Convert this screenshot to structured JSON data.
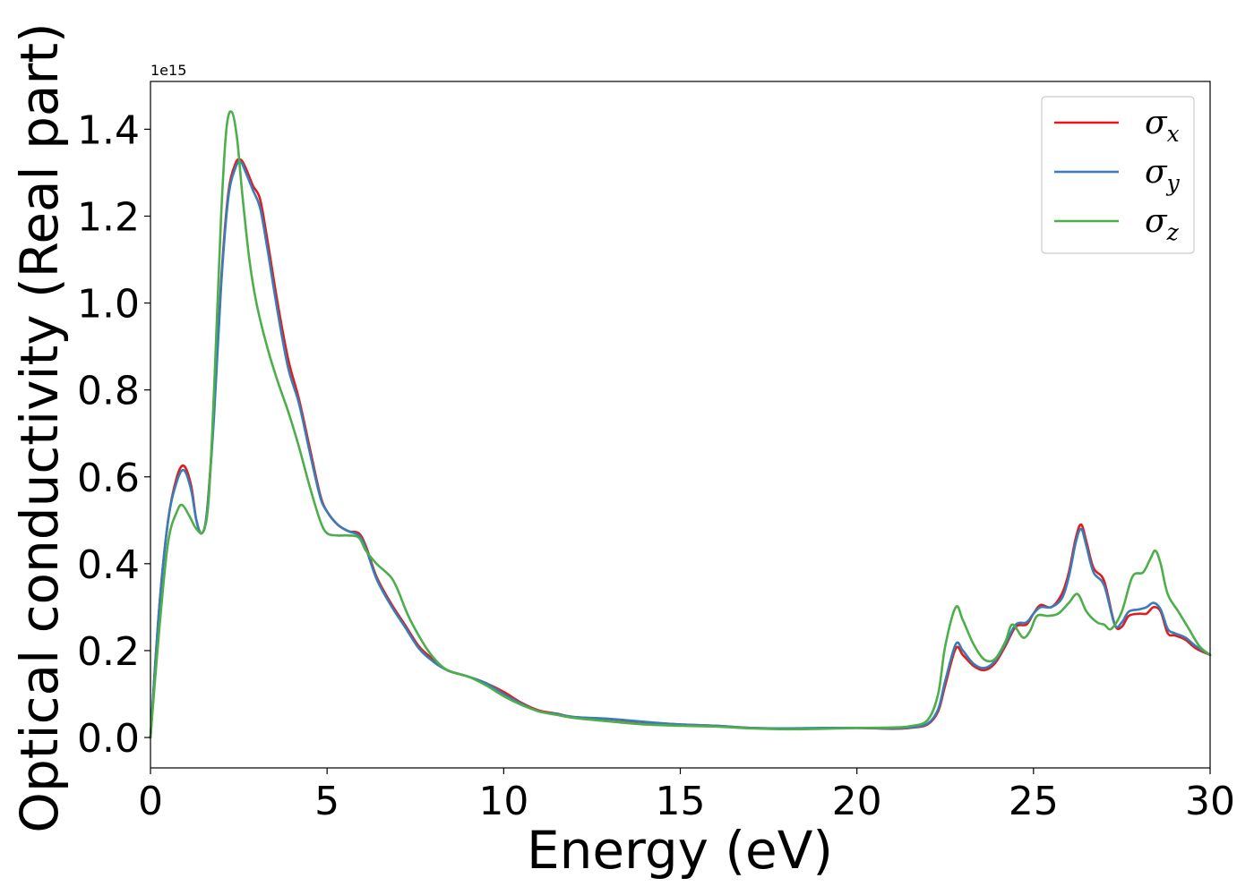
{
  "chart_data": {
    "type": "line",
    "xlabel": "Energy (eV)",
    "ylabel": "Optical conductivity (Real part)",
    "y_offset_label": "1e15",
    "xlim": [
      0,
      30
    ],
    "ylim": [
      -0.07,
      1.51
    ],
    "xticks": [
      0,
      5,
      10,
      15,
      20,
      25,
      30
    ],
    "xtick_labels": [
      "0",
      "5",
      "10",
      "15",
      "20",
      "25",
      "30"
    ],
    "yticks": [
      0.0,
      0.2,
      0.4,
      0.6,
      0.8,
      1.0,
      1.2,
      1.4
    ],
    "ytick_labels": [
      "0.0",
      "0.2",
      "0.4",
      "0.6",
      "0.8",
      "1.0",
      "1.2",
      "1.4"
    ],
    "grid": false,
    "legend_position": "top-right",
    "series": [
      {
        "name": "σ",
        "subscript": "x",
        "color": "#e41a1c",
        "points": [
          [
            0,
            0
          ],
          [
            0.25,
            0.3
          ],
          [
            0.5,
            0.5
          ],
          [
            0.75,
            0.6
          ],
          [
            0.95,
            0.625
          ],
          [
            1.15,
            0.58
          ],
          [
            1.3,
            0.5
          ],
          [
            1.45,
            0.47
          ],
          [
            1.6,
            0.52
          ],
          [
            1.8,
            0.75
          ],
          [
            2.0,
            1.05
          ],
          [
            2.2,
            1.25
          ],
          [
            2.4,
            1.32
          ],
          [
            2.55,
            1.33
          ],
          [
            2.7,
            1.31
          ],
          [
            2.9,
            1.27
          ],
          [
            3.1,
            1.24
          ],
          [
            3.3,
            1.15
          ],
          [
            3.6,
            1.0
          ],
          [
            3.9,
            0.87
          ],
          [
            4.2,
            0.78
          ],
          [
            4.5,
            0.67
          ],
          [
            4.8,
            0.56
          ],
          [
            5.0,
            0.52
          ],
          [
            5.3,
            0.49
          ],
          [
            5.6,
            0.475
          ],
          [
            5.9,
            0.47
          ],
          [
            6.1,
            0.44
          ],
          [
            6.4,
            0.37
          ],
          [
            6.8,
            0.31
          ],
          [
            7.2,
            0.26
          ],
          [
            7.6,
            0.21
          ],
          [
            8.0,
            0.18
          ],
          [
            8.4,
            0.155
          ],
          [
            9.0,
            0.14
          ],
          [
            9.5,
            0.125
          ],
          [
            10.0,
            0.105
          ],
          [
            10.5,
            0.08
          ],
          [
            11.0,
            0.062
          ],
          [
            11.5,
            0.055
          ],
          [
            12.0,
            0.047
          ],
          [
            13.0,
            0.042
          ],
          [
            14.0,
            0.035
          ],
          [
            15.0,
            0.03
          ],
          [
            16.0,
            0.027
          ],
          [
            17.0,
            0.022
          ],
          [
            18.0,
            0.02
          ],
          [
            19.0,
            0.021
          ],
          [
            20.0,
            0.022
          ],
          [
            21.0,
            0.02
          ],
          [
            21.5,
            0.022
          ],
          [
            22.0,
            0.03
          ],
          [
            22.3,
            0.06
          ],
          [
            22.5,
            0.12
          ],
          [
            22.8,
            0.205
          ],
          [
            23.0,
            0.19
          ],
          [
            23.3,
            0.165
          ],
          [
            23.6,
            0.155
          ],
          [
            23.9,
            0.17
          ],
          [
            24.2,
            0.21
          ],
          [
            24.5,
            0.255
          ],
          [
            24.8,
            0.26
          ],
          [
            25.0,
            0.285
          ],
          [
            25.2,
            0.305
          ],
          [
            25.5,
            0.3
          ],
          [
            25.8,
            0.33
          ],
          [
            26.0,
            0.38
          ],
          [
            26.2,
            0.46
          ],
          [
            26.35,
            0.49
          ],
          [
            26.5,
            0.45
          ],
          [
            26.7,
            0.39
          ],
          [
            27.0,
            0.36
          ],
          [
            27.3,
            0.26
          ],
          [
            27.5,
            0.255
          ],
          [
            27.7,
            0.28
          ],
          [
            28.0,
            0.285
          ],
          [
            28.2,
            0.285
          ],
          [
            28.4,
            0.3
          ],
          [
            28.6,
            0.29
          ],
          [
            28.8,
            0.24
          ],
          [
            29.0,
            0.235
          ],
          [
            29.3,
            0.225
          ],
          [
            29.6,
            0.205
          ],
          [
            30.0,
            0.19
          ]
        ]
      },
      {
        "name": "σ",
        "subscript": "y",
        "color": "#377eb8",
        "points": [
          [
            0,
            0
          ],
          [
            0.25,
            0.3
          ],
          [
            0.5,
            0.5
          ],
          [
            0.75,
            0.59
          ],
          [
            0.95,
            0.615
          ],
          [
            1.15,
            0.57
          ],
          [
            1.3,
            0.5
          ],
          [
            1.45,
            0.47
          ],
          [
            1.6,
            0.52
          ],
          [
            1.8,
            0.74
          ],
          [
            2.0,
            1.04
          ],
          [
            2.2,
            1.24
          ],
          [
            2.4,
            1.31
          ],
          [
            2.55,
            1.325
          ],
          [
            2.7,
            1.3
          ],
          [
            2.9,
            1.26
          ],
          [
            3.1,
            1.22
          ],
          [
            3.3,
            1.13
          ],
          [
            3.6,
            0.98
          ],
          [
            3.9,
            0.85
          ],
          [
            4.2,
            0.77
          ],
          [
            4.5,
            0.66
          ],
          [
            4.8,
            0.555
          ],
          [
            5.0,
            0.52
          ],
          [
            5.3,
            0.49
          ],
          [
            5.6,
            0.475
          ],
          [
            5.9,
            0.465
          ],
          [
            6.1,
            0.435
          ],
          [
            6.4,
            0.365
          ],
          [
            6.8,
            0.305
          ],
          [
            7.2,
            0.255
          ],
          [
            7.6,
            0.205
          ],
          [
            8.0,
            0.175
          ],
          [
            8.4,
            0.155
          ],
          [
            9.0,
            0.14
          ],
          [
            9.5,
            0.125
          ],
          [
            10.0,
            0.1
          ],
          [
            10.5,
            0.078
          ],
          [
            11.0,
            0.06
          ],
          [
            11.5,
            0.054
          ],
          [
            12.0,
            0.047
          ],
          [
            13.0,
            0.043
          ],
          [
            14.0,
            0.036
          ],
          [
            15.0,
            0.03
          ],
          [
            16.0,
            0.027
          ],
          [
            17.0,
            0.022
          ],
          [
            18.0,
            0.021
          ],
          [
            19.0,
            0.022
          ],
          [
            20.0,
            0.022
          ],
          [
            21.0,
            0.021
          ],
          [
            21.5,
            0.023
          ],
          [
            22.0,
            0.032
          ],
          [
            22.3,
            0.065
          ],
          [
            22.5,
            0.13
          ],
          [
            22.8,
            0.215
          ],
          [
            23.0,
            0.2
          ],
          [
            23.3,
            0.17
          ],
          [
            23.6,
            0.16
          ],
          [
            23.9,
            0.175
          ],
          [
            24.2,
            0.215
          ],
          [
            24.5,
            0.26
          ],
          [
            24.8,
            0.265
          ],
          [
            25.0,
            0.285
          ],
          [
            25.2,
            0.3
          ],
          [
            25.5,
            0.3
          ],
          [
            25.8,
            0.32
          ],
          [
            26.0,
            0.37
          ],
          [
            26.2,
            0.45
          ],
          [
            26.35,
            0.48
          ],
          [
            26.5,
            0.44
          ],
          [
            26.7,
            0.38
          ],
          [
            27.0,
            0.35
          ],
          [
            27.3,
            0.26
          ],
          [
            27.5,
            0.265
          ],
          [
            27.7,
            0.29
          ],
          [
            28.0,
            0.295
          ],
          [
            28.2,
            0.3
          ],
          [
            28.4,
            0.31
          ],
          [
            28.6,
            0.295
          ],
          [
            28.8,
            0.25
          ],
          [
            29.0,
            0.24
          ],
          [
            29.3,
            0.23
          ],
          [
            29.6,
            0.21
          ],
          [
            30.0,
            0.19
          ]
        ]
      },
      {
        "name": "σ",
        "subscript": "z",
        "color": "#4daf4a",
        "points": [
          [
            0,
            0
          ],
          [
            0.25,
            0.25
          ],
          [
            0.5,
            0.45
          ],
          [
            0.75,
            0.52
          ],
          [
            0.9,
            0.535
          ],
          [
            1.1,
            0.51
          ],
          [
            1.3,
            0.48
          ],
          [
            1.5,
            0.475
          ],
          [
            1.65,
            0.55
          ],
          [
            1.8,
            0.8
          ],
          [
            2.0,
            1.2
          ],
          [
            2.15,
            1.4
          ],
          [
            2.3,
            1.44
          ],
          [
            2.45,
            1.38
          ],
          [
            2.6,
            1.25
          ],
          [
            2.8,
            1.1
          ],
          [
            3.0,
            1.0
          ],
          [
            3.3,
            0.9
          ],
          [
            3.6,
            0.82
          ],
          [
            3.9,
            0.75
          ],
          [
            4.2,
            0.67
          ],
          [
            4.5,
            0.58
          ],
          [
            4.8,
            0.5
          ],
          [
            5.0,
            0.47
          ],
          [
            5.3,
            0.465
          ],
          [
            5.6,
            0.465
          ],
          [
            5.9,
            0.46
          ],
          [
            6.1,
            0.43
          ],
          [
            6.4,
            0.4
          ],
          [
            6.8,
            0.37
          ],
          [
            7.0,
            0.34
          ],
          [
            7.3,
            0.28
          ],
          [
            7.7,
            0.22
          ],
          [
            8.0,
            0.185
          ],
          [
            8.4,
            0.155
          ],
          [
            9.0,
            0.14
          ],
          [
            9.5,
            0.12
          ],
          [
            10.0,
            0.095
          ],
          [
            10.5,
            0.075
          ],
          [
            11.0,
            0.06
          ],
          [
            11.5,
            0.052
          ],
          [
            12.0,
            0.045
          ],
          [
            13.0,
            0.037
          ],
          [
            14.0,
            0.03
          ],
          [
            15.0,
            0.027
          ],
          [
            16.0,
            0.025
          ],
          [
            17.0,
            0.021
          ],
          [
            18.0,
            0.019
          ],
          [
            19.0,
            0.02
          ],
          [
            20.0,
            0.022
          ],
          [
            21.0,
            0.023
          ],
          [
            21.5,
            0.026
          ],
          [
            22.0,
            0.04
          ],
          [
            22.3,
            0.1
          ],
          [
            22.5,
            0.21
          ],
          [
            22.8,
            0.3
          ],
          [
            23.0,
            0.27
          ],
          [
            23.3,
            0.215
          ],
          [
            23.6,
            0.18
          ],
          [
            23.9,
            0.18
          ],
          [
            24.2,
            0.22
          ],
          [
            24.4,
            0.26
          ],
          [
            24.7,
            0.23
          ],
          [
            24.9,
            0.245
          ],
          [
            25.1,
            0.28
          ],
          [
            25.4,
            0.28
          ],
          [
            25.7,
            0.285
          ],
          [
            26.0,
            0.31
          ],
          [
            26.25,
            0.33
          ],
          [
            26.5,
            0.29
          ],
          [
            26.8,
            0.265
          ],
          [
            27.0,
            0.26
          ],
          [
            27.2,
            0.25
          ],
          [
            27.5,
            0.29
          ],
          [
            27.8,
            0.37
          ],
          [
            28.1,
            0.38
          ],
          [
            28.3,
            0.41
          ],
          [
            28.45,
            0.43
          ],
          [
            28.6,
            0.4
          ],
          [
            28.8,
            0.33
          ],
          [
            29.1,
            0.29
          ],
          [
            29.4,
            0.25
          ],
          [
            29.7,
            0.21
          ],
          [
            30.0,
            0.19
          ]
        ]
      }
    ]
  }
}
